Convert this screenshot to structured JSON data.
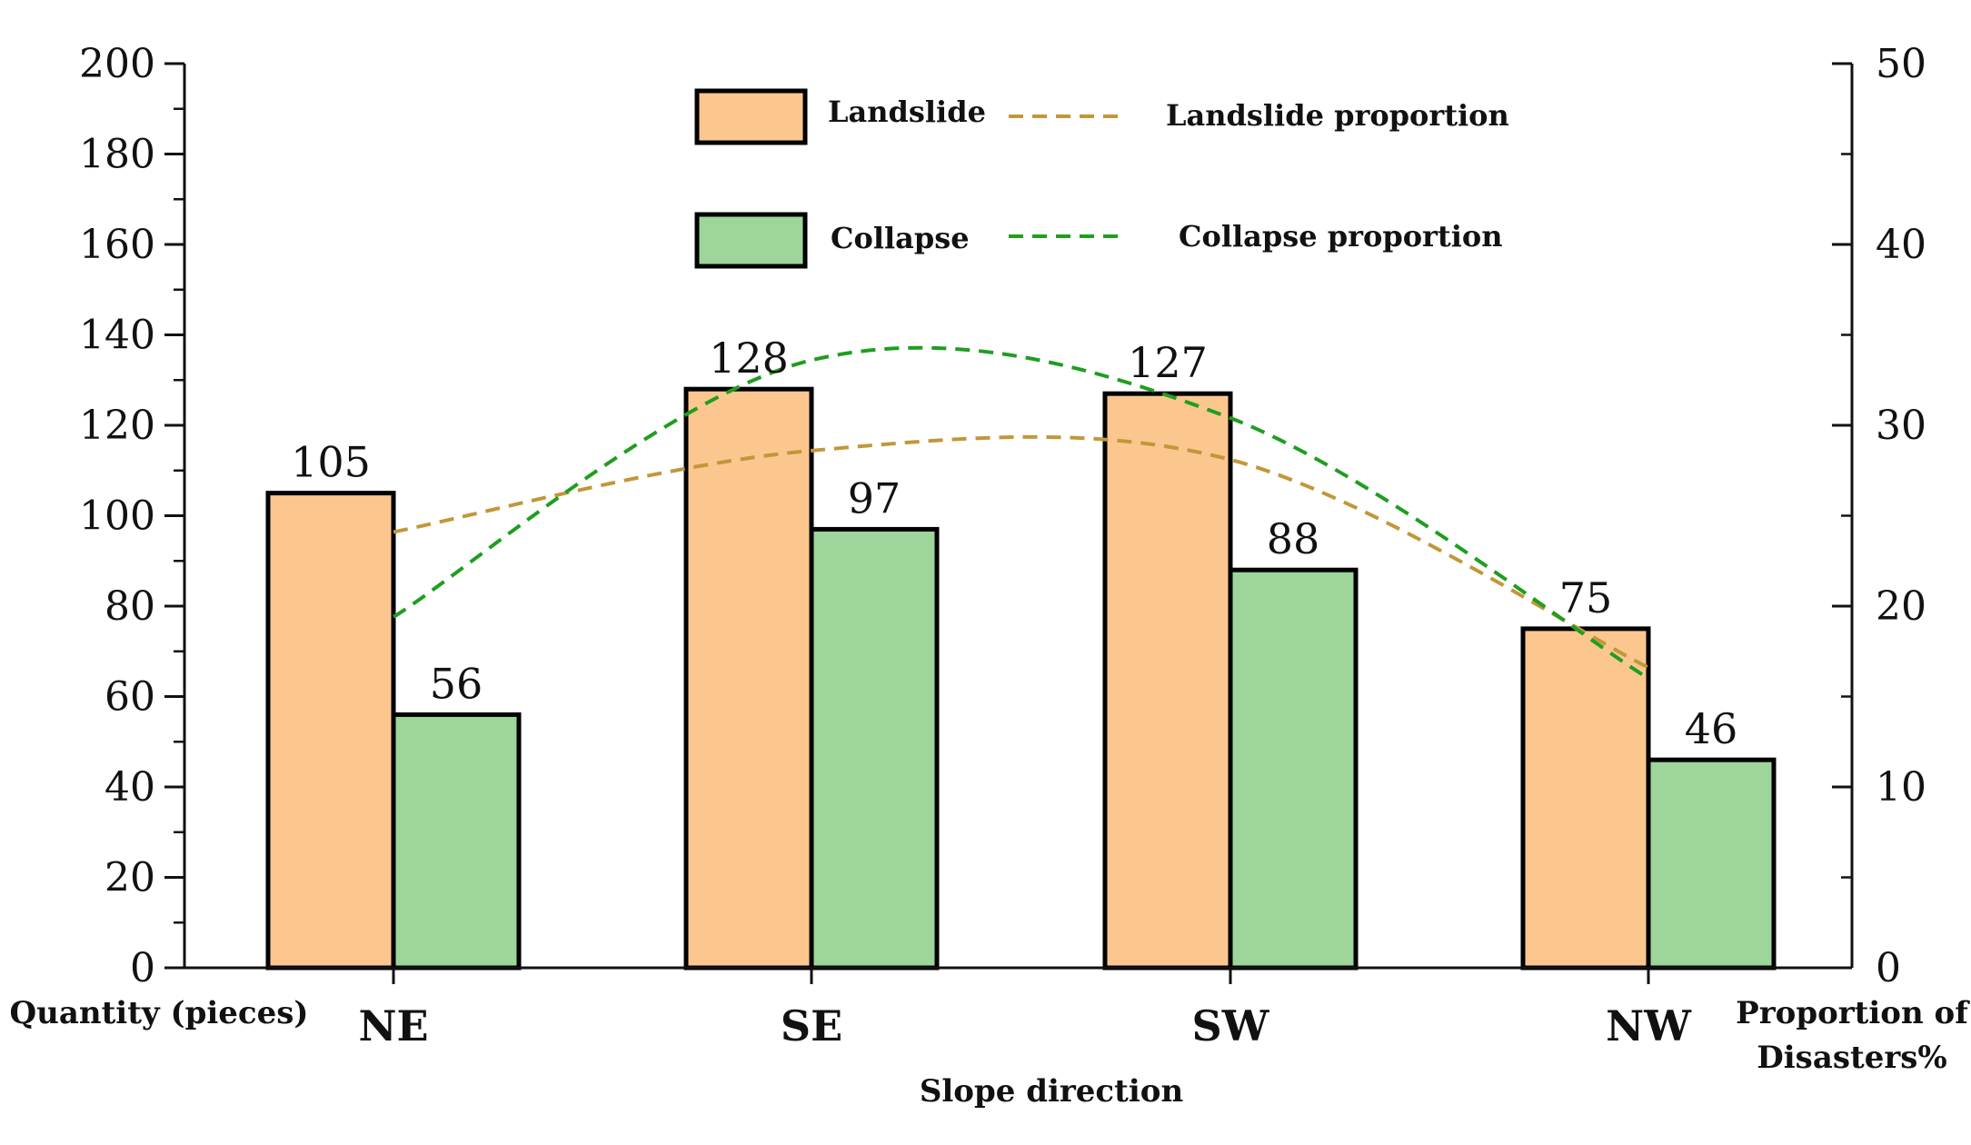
{
  "chart_data": {
    "type": "bar",
    "categories": [
      "NE",
      "SE",
      "SW",
      "NW"
    ],
    "series": [
      {
        "name": "Landslide",
        "kind": "bar",
        "axis": "left",
        "values": [
          105,
          128,
          127,
          75
        ],
        "color": "#fcc78f"
      },
      {
        "name": "Collapse",
        "kind": "bar",
        "axis": "left",
        "values": [
          56,
          97,
          88,
          46
        ],
        "color": "#9dd59b"
      },
      {
        "name": "Landslide proportion",
        "kind": "line",
        "style": "dashed",
        "axis": "right",
        "values": [
          24.1,
          28.6,
          28.1,
          16.6
        ],
        "color": "#c2973a"
      },
      {
        "name": "Collapse proportion",
        "kind": "line",
        "style": "dashed",
        "axis": "right",
        "values": [
          19.4,
          33.6,
          30.4,
          16.0
        ],
        "color": "#1f9e1f"
      }
    ],
    "xlabel": "Slope direction",
    "ylabel": "Quantity (pieces)",
    "y2label_line1": "Proportion of",
    "y2label_line2": "Disasters%",
    "ylim": [
      0,
      200
    ],
    "yticks": [
      0,
      20,
      40,
      60,
      80,
      100,
      120,
      140,
      160,
      180,
      200
    ],
    "y2lim": [
      0,
      50
    ],
    "y2ticks": [
      0,
      10,
      20,
      30,
      40,
      50
    ],
    "grid": false,
    "legend_position": "top-center"
  }
}
